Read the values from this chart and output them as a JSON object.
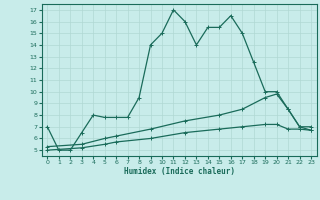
{
  "title": "",
  "xlabel": "Humidex (Indice chaleur)",
  "ylabel": "",
  "bg_color": "#c8ecea",
  "grid_color": "#b0d8d4",
  "line_color": "#1a6b5a",
  "xlim": [
    -0.5,
    23.5
  ],
  "ylim": [
    4.5,
    17.5
  ],
  "xticks": [
    0,
    1,
    2,
    3,
    4,
    5,
    6,
    7,
    8,
    9,
    10,
    11,
    12,
    13,
    14,
    15,
    16,
    17,
    18,
    19,
    20,
    21,
    22,
    23
  ],
  "yticks": [
    5,
    6,
    7,
    8,
    9,
    10,
    11,
    12,
    13,
    14,
    15,
    16,
    17
  ],
  "main_x": [
    0,
    1,
    2,
    3,
    4,
    5,
    6,
    7,
    8,
    9,
    10,
    11,
    12,
    13,
    14,
    15,
    16,
    17,
    18,
    19,
    20,
    21,
    22,
    23
  ],
  "main_y": [
    7,
    5,
    5,
    6.5,
    8,
    7.8,
    7.8,
    7.8,
    9.5,
    14,
    15,
    17,
    16,
    14,
    15.5,
    15.5,
    16.5,
    15,
    12.5,
    10,
    10,
    8.5,
    7,
    7
  ],
  "line2_x": [
    0,
    3,
    5,
    6,
    9,
    12,
    15,
    17,
    19,
    20,
    21,
    22,
    23
  ],
  "line2_y": [
    5.3,
    5.5,
    6.0,
    6.2,
    6.8,
    7.5,
    8.0,
    8.5,
    9.5,
    9.8,
    8.5,
    7.0,
    6.7
  ],
  "line3_x": [
    0,
    3,
    5,
    6,
    9,
    12,
    15,
    17,
    19,
    20,
    21,
    22,
    23
  ],
  "line3_y": [
    5.0,
    5.2,
    5.5,
    5.7,
    6.0,
    6.5,
    6.8,
    7.0,
    7.2,
    7.2,
    6.8,
    6.8,
    6.7
  ],
  "marker_size": 2.5,
  "line_width": 0.9
}
